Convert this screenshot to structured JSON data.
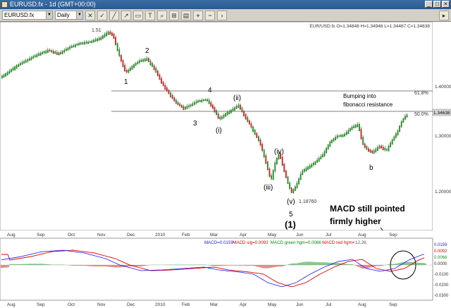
{
  "window": {
    "title": "EURUSD.fx - 1d (GMT+00:00)"
  },
  "toolbar": {
    "symbol_value": "EURUSD.fx",
    "timeframe_value": "Daily",
    "icons": [
      "close-icon",
      "check-icon",
      "line-tool-icon",
      "trend-tool-icon",
      "box-tool-icon",
      "text-tool-icon",
      "zoom-icon",
      "plus-icon",
      "minus-icon",
      "chevron-right-icon"
    ],
    "plus_label": "+",
    "minus_label": "−"
  },
  "price_chart": {
    "ohlc_label": "EUR/USD.fx O=1.34848 H=1.34946 L=1.34467 C=1.34638",
    "y_ticks": [
      "1.40000",
      "1.30000",
      "1.20000"
    ],
    "price_tag": "1.34638",
    "fib_labels": [
      "61.8%",
      "50.0%"
    ],
    "peak_label": "1.51",
    "low_label": "1.18760",
    "wave_labels": [
      "1",
      "2",
      "3",
      "4",
      "(i)",
      "(ii)",
      "(iii)",
      "(iv)",
      "(v)",
      "5",
      "(1)",
      "b"
    ],
    "annotation_fib": [
      "Bumping into",
      "fibonacci resistance"
    ],
    "annotation_macd": [
      "MACD still pointed",
      "firmly higher"
    ]
  },
  "month_labels": [
    "Aug",
    "Sep",
    "Oct",
    "Nov",
    "Dec",
    "2010",
    "Feb",
    "Mar",
    "Apr",
    "May",
    "Jun",
    "Jul",
    "Aug",
    "Sep"
  ],
  "macd_panel": {
    "legend": [
      {
        "text": "MACD=0.0159",
        "color": "#1a1aff"
      },
      {
        "text": "MACD sig=0.0092",
        "color": "#e00000"
      },
      {
        "text": "MACD green hgm=0.0066",
        "color": "#009000"
      },
      {
        "text": "MACD red hgm=",
        "color": "#e00000"
      },
      {
        "text": "12,26,",
        "color": "#555555"
      }
    ],
    "y_ticks": [
      "0.0159",
      "0.0092",
      "0.0066",
      "0.0000",
      "-0.0100",
      "-0.0200",
      "-0.0300"
    ]
  },
  "colors": {
    "bull": "#1c8c1c",
    "bear": "#c81e1e",
    "macd": "#1a1aff",
    "signal": "#e00000"
  }
}
